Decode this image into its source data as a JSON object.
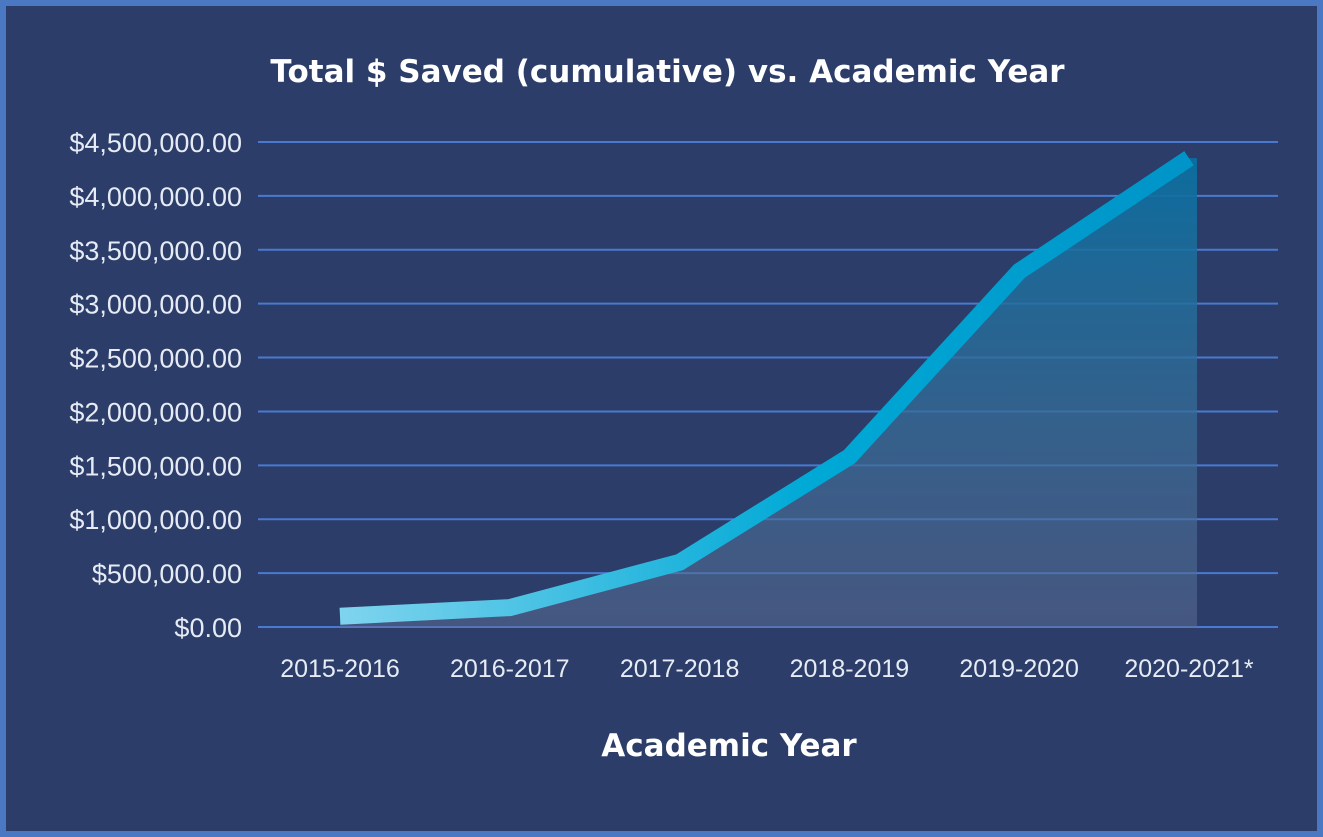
{
  "chart_data": {
    "type": "area",
    "title": "Total $ Saved (cumulative) vs. Academic Year",
    "xlabel": "Academic Year",
    "ylabel": "",
    "categories": [
      "2015-2016",
      "2016-2017",
      "2017-2018",
      "2018-2019",
      "2019-2020",
      "2020-2021*"
    ],
    "series": [
      {
        "values": [
          100000,
          180000,
          600000,
          1580000,
          3300000,
          4350000
        ]
      }
    ],
    "ylim": [
      0,
      4500000
    ],
    "yticks": [
      0,
      500000,
      1000000,
      1500000,
      2000000,
      2500000,
      3000000,
      3500000,
      4000000,
      4500000
    ],
    "ytick_labels": [
      "$0.00",
      "$500,000.00",
      "$1,000,000.00",
      "$1,500,000.00",
      "$2,000,000.00",
      "$2,500,000.00",
      "$3,000,000.00",
      "$3,500,000.00",
      "$4,000,000.00",
      "$4,500,000.00"
    ],
    "grid": true,
    "legend": "none",
    "colors": {
      "background": "#2b3d68",
      "border": "#4a78c2",
      "gridline": "#4a7ad0",
      "line_start": "#7fd4ee",
      "line_mid": "#00a9d6",
      "line_end": "#0094c8",
      "area_top": "#0a6fa0",
      "area_bottom": "#5a6c94"
    }
  }
}
